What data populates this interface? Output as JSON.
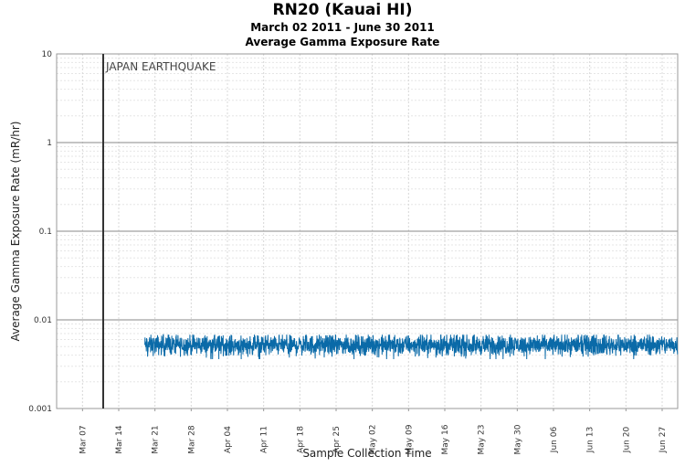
{
  "chart_data": {
    "type": "line",
    "title": "RN20 (Kauai HI)",
    "subtitle": "March 02 2011 - June 30 2011",
    "subtitle2": "Average Gamma Exposure Rate",
    "xlabel": "Sample Collection Time",
    "ylabel": "Average Gamma Exposure Rate (mR/hr)",
    "yscale": "log",
    "ylim": [
      0.001,
      10
    ],
    "xlim": [
      "2011-03-02",
      "2011-06-30"
    ],
    "y_ticks": [
      "0.001",
      "0.01",
      "0.1",
      "1",
      "10"
    ],
    "x_ticks": [
      "Mar 07",
      "Mar 14",
      "Mar 21",
      "Mar 28",
      "Apr 04",
      "Apr 11",
      "Apr 18",
      "Apr 25",
      "May 02",
      "May 09",
      "May 16",
      "May 23",
      "May 30",
      "Jun 06",
      "Jun 13",
      "Jun 20",
      "Jun 27"
    ],
    "x_tick_dates": [
      "2011-03-07",
      "2011-03-14",
      "2011-03-21",
      "2011-03-28",
      "2011-04-04",
      "2011-04-11",
      "2011-04-18",
      "2011-04-25",
      "2011-05-02",
      "2011-05-09",
      "2011-05-16",
      "2011-05-23",
      "2011-05-30",
      "2011-06-06",
      "2011-06-13",
      "2011-06-20",
      "2011-06-27"
    ],
    "grid": true,
    "annotations": [
      {
        "label": "JAPAN EARTHQUAKE",
        "x": "2011-03-11"
      }
    ],
    "series": [
      {
        "color": "#0a6aa8",
        "x_start": "2011-03-19",
        "x_end": "2011-06-30",
        "typical_value": 0.0052,
        "range": [
          0.0036,
          0.0068
        ]
      }
    ]
  }
}
